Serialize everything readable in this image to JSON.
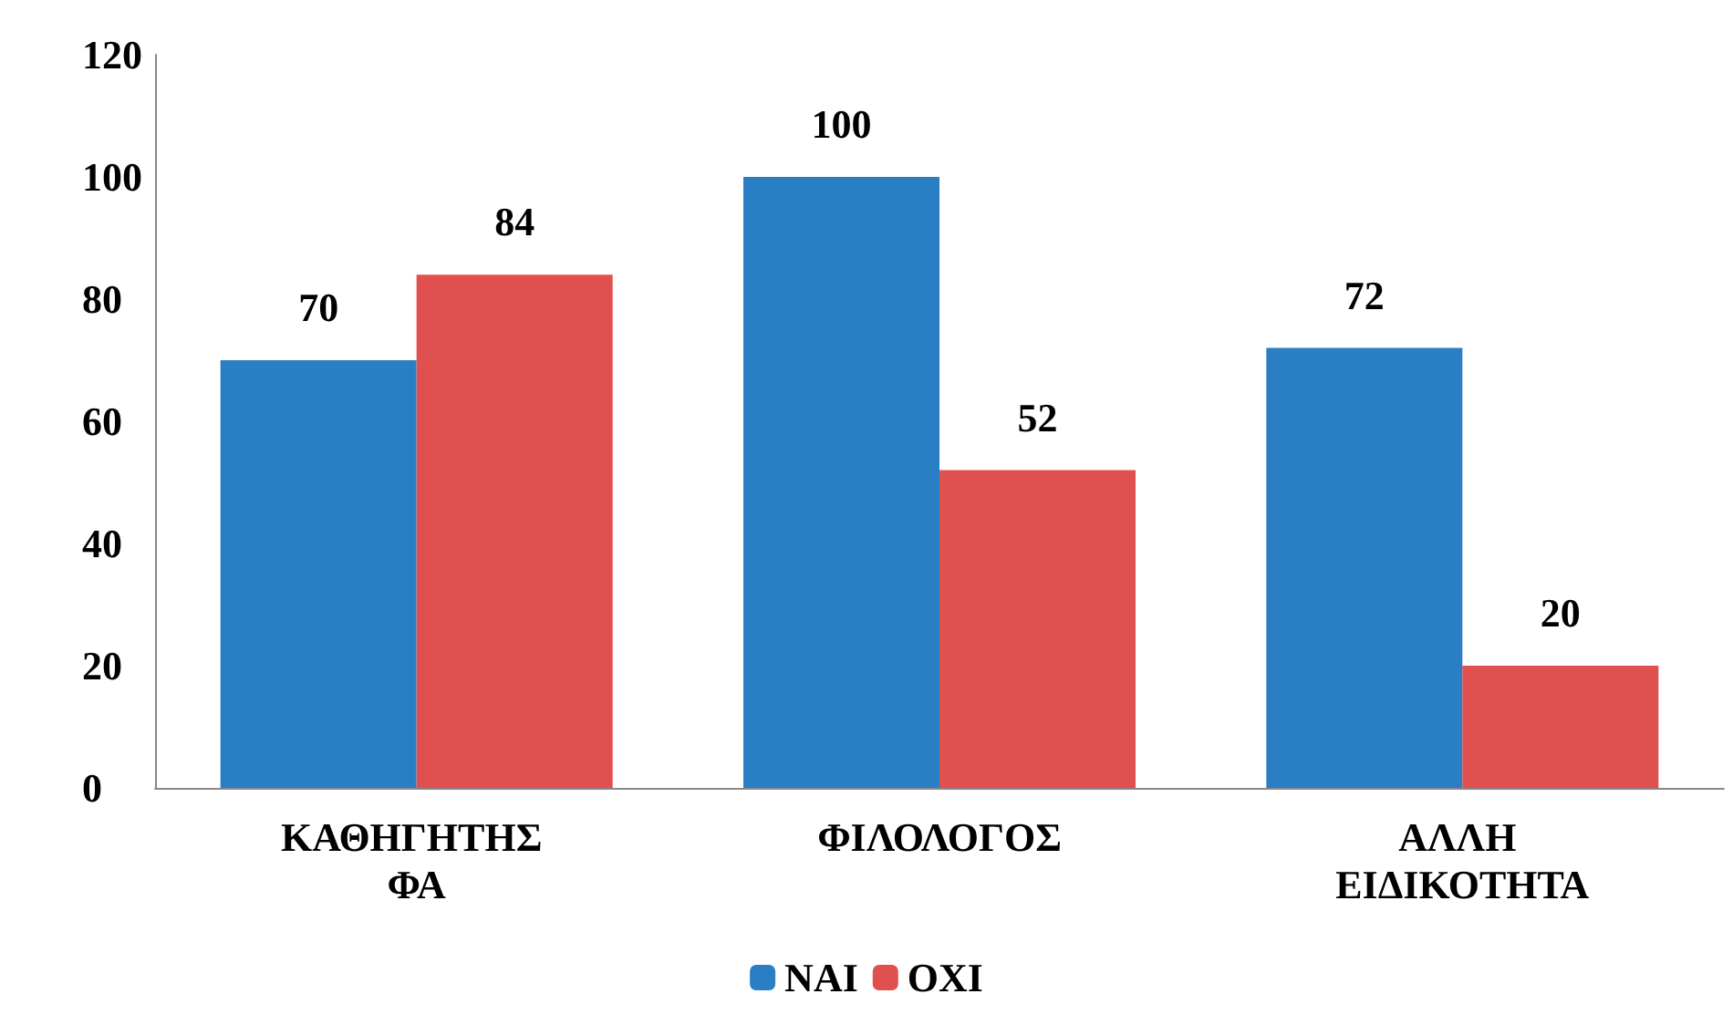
{
  "chart_data": {
    "type": "bar",
    "categories": [
      "ΚΑΘΗΓΗΤΗΣ ΦΑ",
      "ΦΙΛΟΛΟΓΟΣ",
      "ΑΛΛΗ ΕΙΔΙΚΟΤΗΤΑ"
    ],
    "series": [
      {
        "name": "ΝΑΙ",
        "color": "#2a7fc4",
        "values": [
          70,
          100,
          72
        ]
      },
      {
        "name": "ΟΧΙ",
        "color": "#e0504e",
        "values": [
          84,
          52,
          20
        ]
      }
    ],
    "ylim": [
      0,
      120
    ],
    "yticks": [
      0,
      20,
      40,
      60,
      80,
      100,
      120
    ],
    "grid": false,
    "legend": "bottom",
    "data_labels": true
  }
}
